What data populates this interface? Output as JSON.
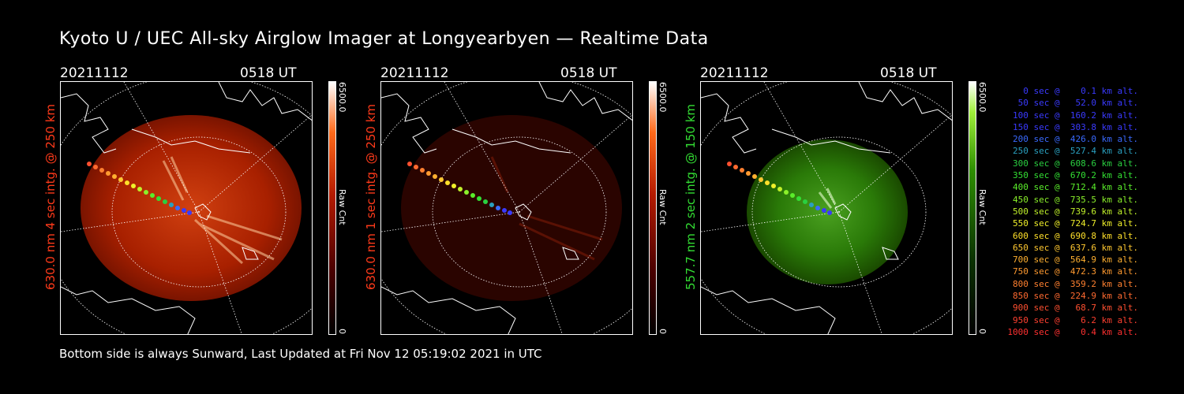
{
  "title": "Kyoto U / UEC All-sky Airglow Imager at Longyearbyen — Realtime Data",
  "footer": "Bottom side is always Sunward, Last Updated at Fri Nov 12 05:19:02 2021 in UTC",
  "panels": [
    {
      "date": "20211112",
      "time": "0518 UT",
      "side_label": "630.0 nm 4 sec intg. @ 250 km",
      "label_color": "#ff3a1a",
      "colorbar_max": "6500.0",
      "colorbar_min": "0",
      "colorbar_unit": "Raw Cnt",
      "tint": "red"
    },
    {
      "date": "20211112",
      "time": "0518 UT",
      "side_label": "630.0 nm 1 sec intg. @ 250 km",
      "label_color": "#ff3a1a",
      "colorbar_max": "6500.0",
      "colorbar_min": "0",
      "colorbar_unit": "Raw Cnt",
      "tint": "darkred"
    },
    {
      "date": "20211112",
      "time": "0518 UT",
      "side_label": "557.7 nm 2 sec intg. @ 150 km",
      "label_color": "#33dd33",
      "colorbar_max": "6500.0",
      "colorbar_min": "0",
      "colorbar_unit": "Raw Cnt",
      "tint": "green"
    }
  ],
  "legend": [
    {
      "text": "   0 sec @    0.1 km alt.",
      "color": "#3a3aff"
    },
    {
      "text": "  50 sec @   52.0 km alt.",
      "color": "#3a3aff"
    },
    {
      "text": " 100 sec @  160.2 km alt.",
      "color": "#3a3aff"
    },
    {
      "text": " 150 sec @  303.8 km alt.",
      "color": "#3a3aff"
    },
    {
      "text": " 200 sec @  426.0 km alt.",
      "color": "#3a6aff"
    },
    {
      "text": " 250 sec @  527.4 km alt.",
      "color": "#2aa0c0"
    },
    {
      "text": " 300 sec @  608.6 km alt.",
      "color": "#2ad040"
    },
    {
      "text": " 350 sec @  670.2 km alt.",
      "color": "#33e033"
    },
    {
      "text": " 400 sec @  712.4 km alt.",
      "color": "#5aee2a"
    },
    {
      "text": " 450 sec @  735.5 km alt.",
      "color": "#8af02a"
    },
    {
      "text": " 500 sec @  739.6 km alt.",
      "color": "#c0f02a"
    },
    {
      "text": " 550 sec @  724.7 km alt.",
      "color": "#f0f02a"
    },
    {
      "text": " 600 sec @  690.8 km alt.",
      "color": "#ffe02a"
    },
    {
      "text": " 650 sec @  637.6 km alt.",
      "color": "#ffc830"
    },
    {
      "text": " 700 sec @  564.9 km alt.",
      "color": "#ffb030"
    },
    {
      "text": " 750 sec @  472.3 km alt.",
      "color": "#ff9a30"
    },
    {
      "text": " 800 sec @  359.2 km alt.",
      "color": "#ff8030"
    },
    {
      "text": " 850 sec @  224.9 km alt.",
      "color": "#ff6a30"
    },
    {
      "text": " 900 sec @   68.7 km alt.",
      "color": "#ff5030"
    },
    {
      "text": " 950 sec @    6.2 km alt.",
      "color": "#ff4030"
    },
    {
      "text": "1000 sec @    0.4 km alt.",
      "color": "#ff3030"
    }
  ]
}
